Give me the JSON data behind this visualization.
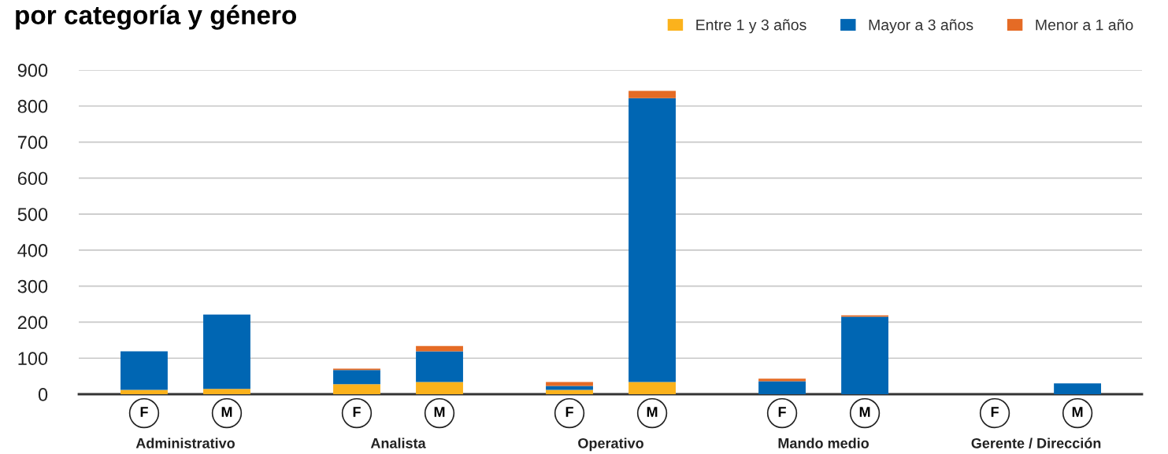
{
  "chart_data": {
    "type": "bar",
    "title": "por categoría y género",
    "stacked": true,
    "categories": [
      "F",
      "M",
      "F",
      "M",
      "F",
      "M",
      "F",
      "M",
      "F",
      "M"
    ],
    "series": [
      {
        "name": "Entre 1 y 3 años",
        "color": "#fbb21c",
        "values": [
          12,
          15,
          28,
          34,
          12,
          34,
          0,
          0,
          0,
          0
        ]
      },
      {
        "name": "Mayor a 3 años",
        "color": "#0066b3",
        "values": [
          107,
          206,
          39,
          85,
          11,
          788,
          36,
          215,
          0,
          30
        ]
      },
      {
        "name": "Menor a 1 año",
        "color": "#e56b25",
        "values": [
          0,
          0,
          4,
          15,
          11,
          20,
          7,
          4,
          0,
          0
        ]
      }
    ],
    "annotations": [
      "Administrativo",
      "Analista",
      "Operativo",
      "Mando medio",
      "Gerente / Dirección"
    ],
    "ylim": [
      0,
      900
    ],
    "yticks": [
      0,
      100,
      200,
      300,
      400,
      500,
      600,
      700,
      800,
      900
    ],
    "grid": "y",
    "legend": "top right"
  }
}
